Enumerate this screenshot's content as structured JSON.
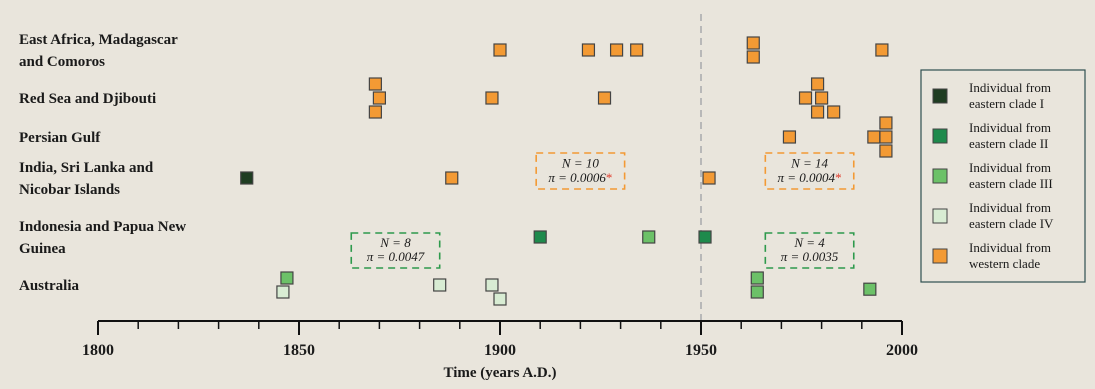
{
  "chart_data": {
    "type": "scatter",
    "xlabel": "Time (years A.D.)",
    "xlim": [
      1800,
      2000
    ],
    "x_ticks": [
      "1800",
      "1850",
      "1900",
      "1950",
      "2000"
    ],
    "rows": [
      {
        "key": "eafrica",
        "lines": [
          "East Africa, Madagascar",
          "and Comoros"
        ]
      },
      {
        "key": "redsea",
        "lines": [
          "Red Sea and Djibouti"
        ]
      },
      {
        "key": "persian",
        "lines": [
          "Persian Gulf"
        ]
      },
      {
        "key": "india",
        "lines": [
          "India, Sri Lanka and",
          "Nicobar Islands"
        ]
      },
      {
        "key": "indonesia",
        "lines": [
          "Indonesia and Papua New",
          "Guinea"
        ]
      },
      {
        "key": "australia",
        "lines": [
          "Australia"
        ]
      }
    ],
    "reference_line": {
      "x": 1950,
      "style": "dashed",
      "color": "#b8b8b8"
    },
    "series": [
      {
        "name": "Individual from eastern clade I",
        "label_lines": [
          "Individual from",
          "eastern clade I"
        ],
        "color": "#1f3d22",
        "points": [
          {
            "x": 1837,
            "row": "india",
            "off": 0
          }
        ]
      },
      {
        "name": "Individual from eastern clade II",
        "label_lines": [
          "Individual from",
          "eastern clade II"
        ],
        "color": "#1e8a4c",
        "points": [
          {
            "x": 1910,
            "row": "indonesia",
            "off": 0
          },
          {
            "x": 1951,
            "row": "indonesia",
            "off": 0
          }
        ]
      },
      {
        "name": "Individual from eastern clade III",
        "label_lines": [
          "Individual from",
          "eastern clade III"
        ],
        "color": "#6cc168",
        "points": [
          {
            "x": 1847,
            "row": "australia",
            "off": -0.5
          },
          {
            "x": 1937,
            "row": "indonesia",
            "off": 0
          },
          {
            "x": 1964,
            "row": "australia",
            "off": -0.5
          },
          {
            "x": 1964,
            "row": "australia",
            "off": 0.5
          },
          {
            "x": 1992,
            "row": "australia",
            "off": 0.3
          }
        ]
      },
      {
        "name": "Individual from eastern clade IV",
        "label_lines": [
          "Individual from",
          "eastern clade IV"
        ],
        "color": "#d8ecd3",
        "points": [
          {
            "x": 1846,
            "row": "australia",
            "off": 0.5
          },
          {
            "x": 1885,
            "row": "australia",
            "off": 0
          },
          {
            "x": 1898,
            "row": "australia",
            "off": 0
          },
          {
            "x": 1900,
            "row": "australia",
            "off": 1
          }
        ]
      },
      {
        "name": "Individual from western clade",
        "label_lines": [
          "Individual from",
          "western clade"
        ],
        "color": "#f39a34",
        "points": [
          {
            "x": 1900,
            "row": "eafrica",
            "off": 0
          },
          {
            "x": 1922,
            "row": "eafrica",
            "off": 0
          },
          {
            "x": 1929,
            "row": "eafrica",
            "off": 0
          },
          {
            "x": 1934,
            "row": "eafrica",
            "off": 0
          },
          {
            "x": 1963,
            "row": "eafrica",
            "off": -0.5
          },
          {
            "x": 1963,
            "row": "eafrica",
            "off": 0.5
          },
          {
            "x": 1995,
            "row": "eafrica",
            "off": 0
          },
          {
            "x": 1869,
            "row": "redsea",
            "off": -1
          },
          {
            "x": 1870,
            "row": "redsea",
            "off": 0
          },
          {
            "x": 1869,
            "row": "redsea",
            "off": 1
          },
          {
            "x": 1898,
            "row": "redsea",
            "off": 0
          },
          {
            "x": 1926,
            "row": "redsea",
            "off": 0
          },
          {
            "x": 1979,
            "row": "redsea",
            "off": -1
          },
          {
            "x": 1976,
            "row": "redsea",
            "off": 0
          },
          {
            "x": 1980,
            "row": "redsea",
            "off": 0
          },
          {
            "x": 1979,
            "row": "redsea",
            "off": 1
          },
          {
            "x": 1983,
            "row": "redsea",
            "off": 1
          },
          {
            "x": 1972,
            "row": "persian",
            "off": 0
          },
          {
            "x": 1993,
            "row": "persian",
            "off": 0
          },
          {
            "x": 1996,
            "row": "persian",
            "off": -1
          },
          {
            "x": 1996,
            "row": "persian",
            "off": 0
          },
          {
            "x": 1996,
            "row": "persian",
            "off": 1
          },
          {
            "x": 1888,
            "row": "india",
            "off": 0
          },
          {
            "x": 1952,
            "row": "india",
            "off": 0
          }
        ]
      }
    ],
    "annotations": [
      {
        "lines": [
          "N = 10",
          "π = 0.0006"
        ],
        "asterisk": "*",
        "color": "#f39a34",
        "x0": 1909,
        "x1": 1931,
        "rows": [
          "persian",
          "india"
        ]
      },
      {
        "lines": [
          "N = 14",
          "π = 0.0004"
        ],
        "asterisk": "*",
        "color": "#f39a34",
        "x0": 1966,
        "x1": 1988,
        "rows": [
          "persian",
          "india"
        ]
      },
      {
        "lines": [
          "N = 8",
          "π = 0.0047"
        ],
        "asterisk": "",
        "color": "#2e9a4c",
        "x0": 1863,
        "x1": 1885,
        "rows": [
          "indonesia",
          "australia"
        ]
      },
      {
        "lines": [
          "N = 4",
          "π = 0.0035"
        ],
        "asterisk": "",
        "color": "#2e9a4c",
        "x0": 1966,
        "x1": 1988,
        "rows": [
          "indonesia",
          "australia"
        ]
      }
    ],
    "legend_position": "right",
    "grid": false
  }
}
